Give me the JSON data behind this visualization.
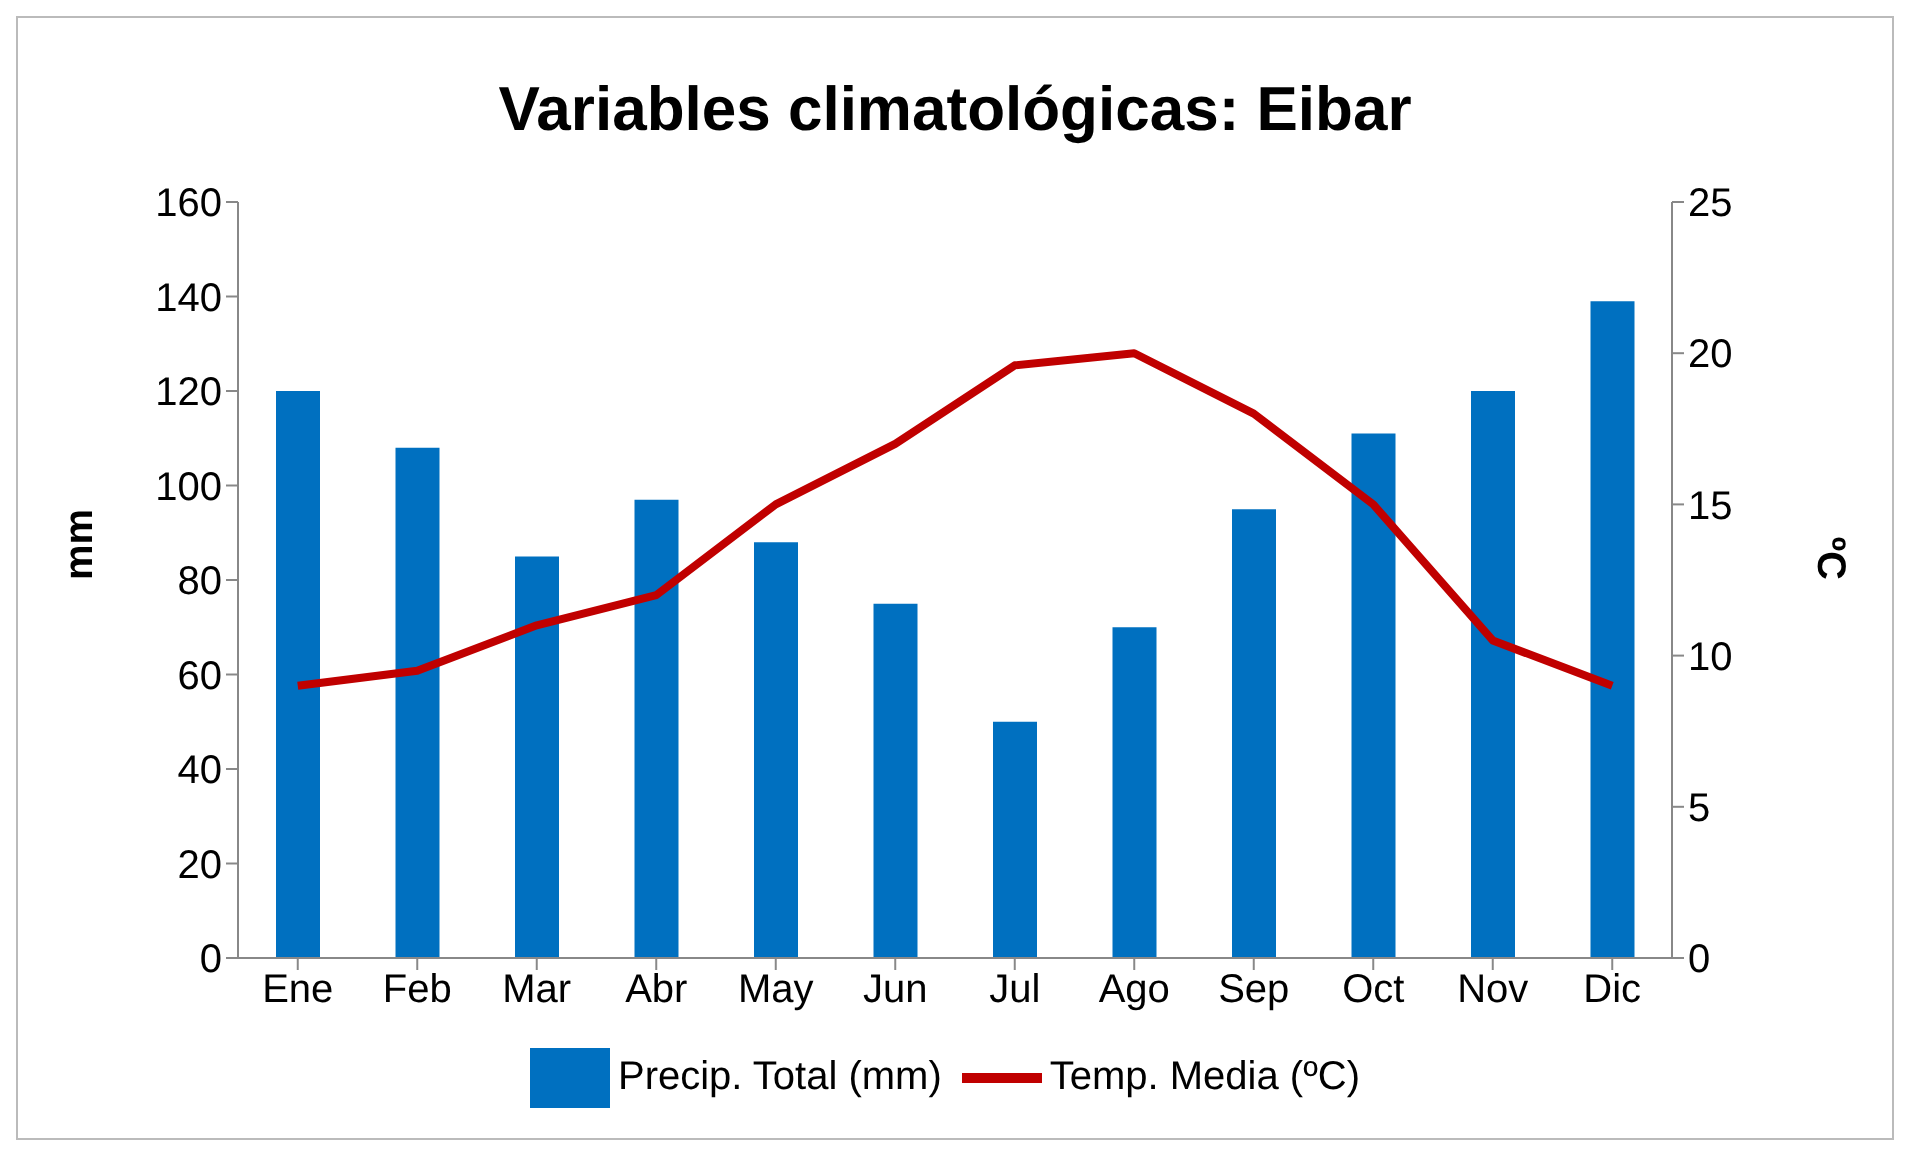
{
  "chart_data": {
    "type": "bar",
    "title": "Variables climatológicas: Eibar",
    "ylabel": "mm",
    "y2label": "ºC",
    "categories": [
      "Ene",
      "Feb",
      "Mar",
      "Abr",
      "May",
      "Jun",
      "Jul",
      "Ago",
      "Sep",
      "Oct",
      "Nov",
      "Dic"
    ],
    "series": [
      {
        "name": "Precip. Total (mm)",
        "color": "#0070c0",
        "values": [
          120,
          108,
          85,
          97,
          88,
          75,
          50,
          70,
          95,
          111,
          120,
          139
        ]
      },
      {
        "name": "Temp. Media (ºC)",
        "type": "line",
        "axis": "y2",
        "color": "#c00000",
        "values": [
          9,
          9.5,
          11,
          12,
          15,
          17,
          19.6,
          20,
          18,
          15,
          10.5,
          9
        ]
      }
    ],
    "ylim": [
      0,
      160
    ],
    "yticks": [
      0,
      20,
      40,
      60,
      80,
      100,
      120,
      140,
      160
    ],
    "y2lim": [
      0,
      25
    ],
    "y2ticks": [
      0,
      5,
      10,
      15,
      20,
      25
    ],
    "grid": false,
    "legend": "bottom",
    "marker": "none"
  }
}
